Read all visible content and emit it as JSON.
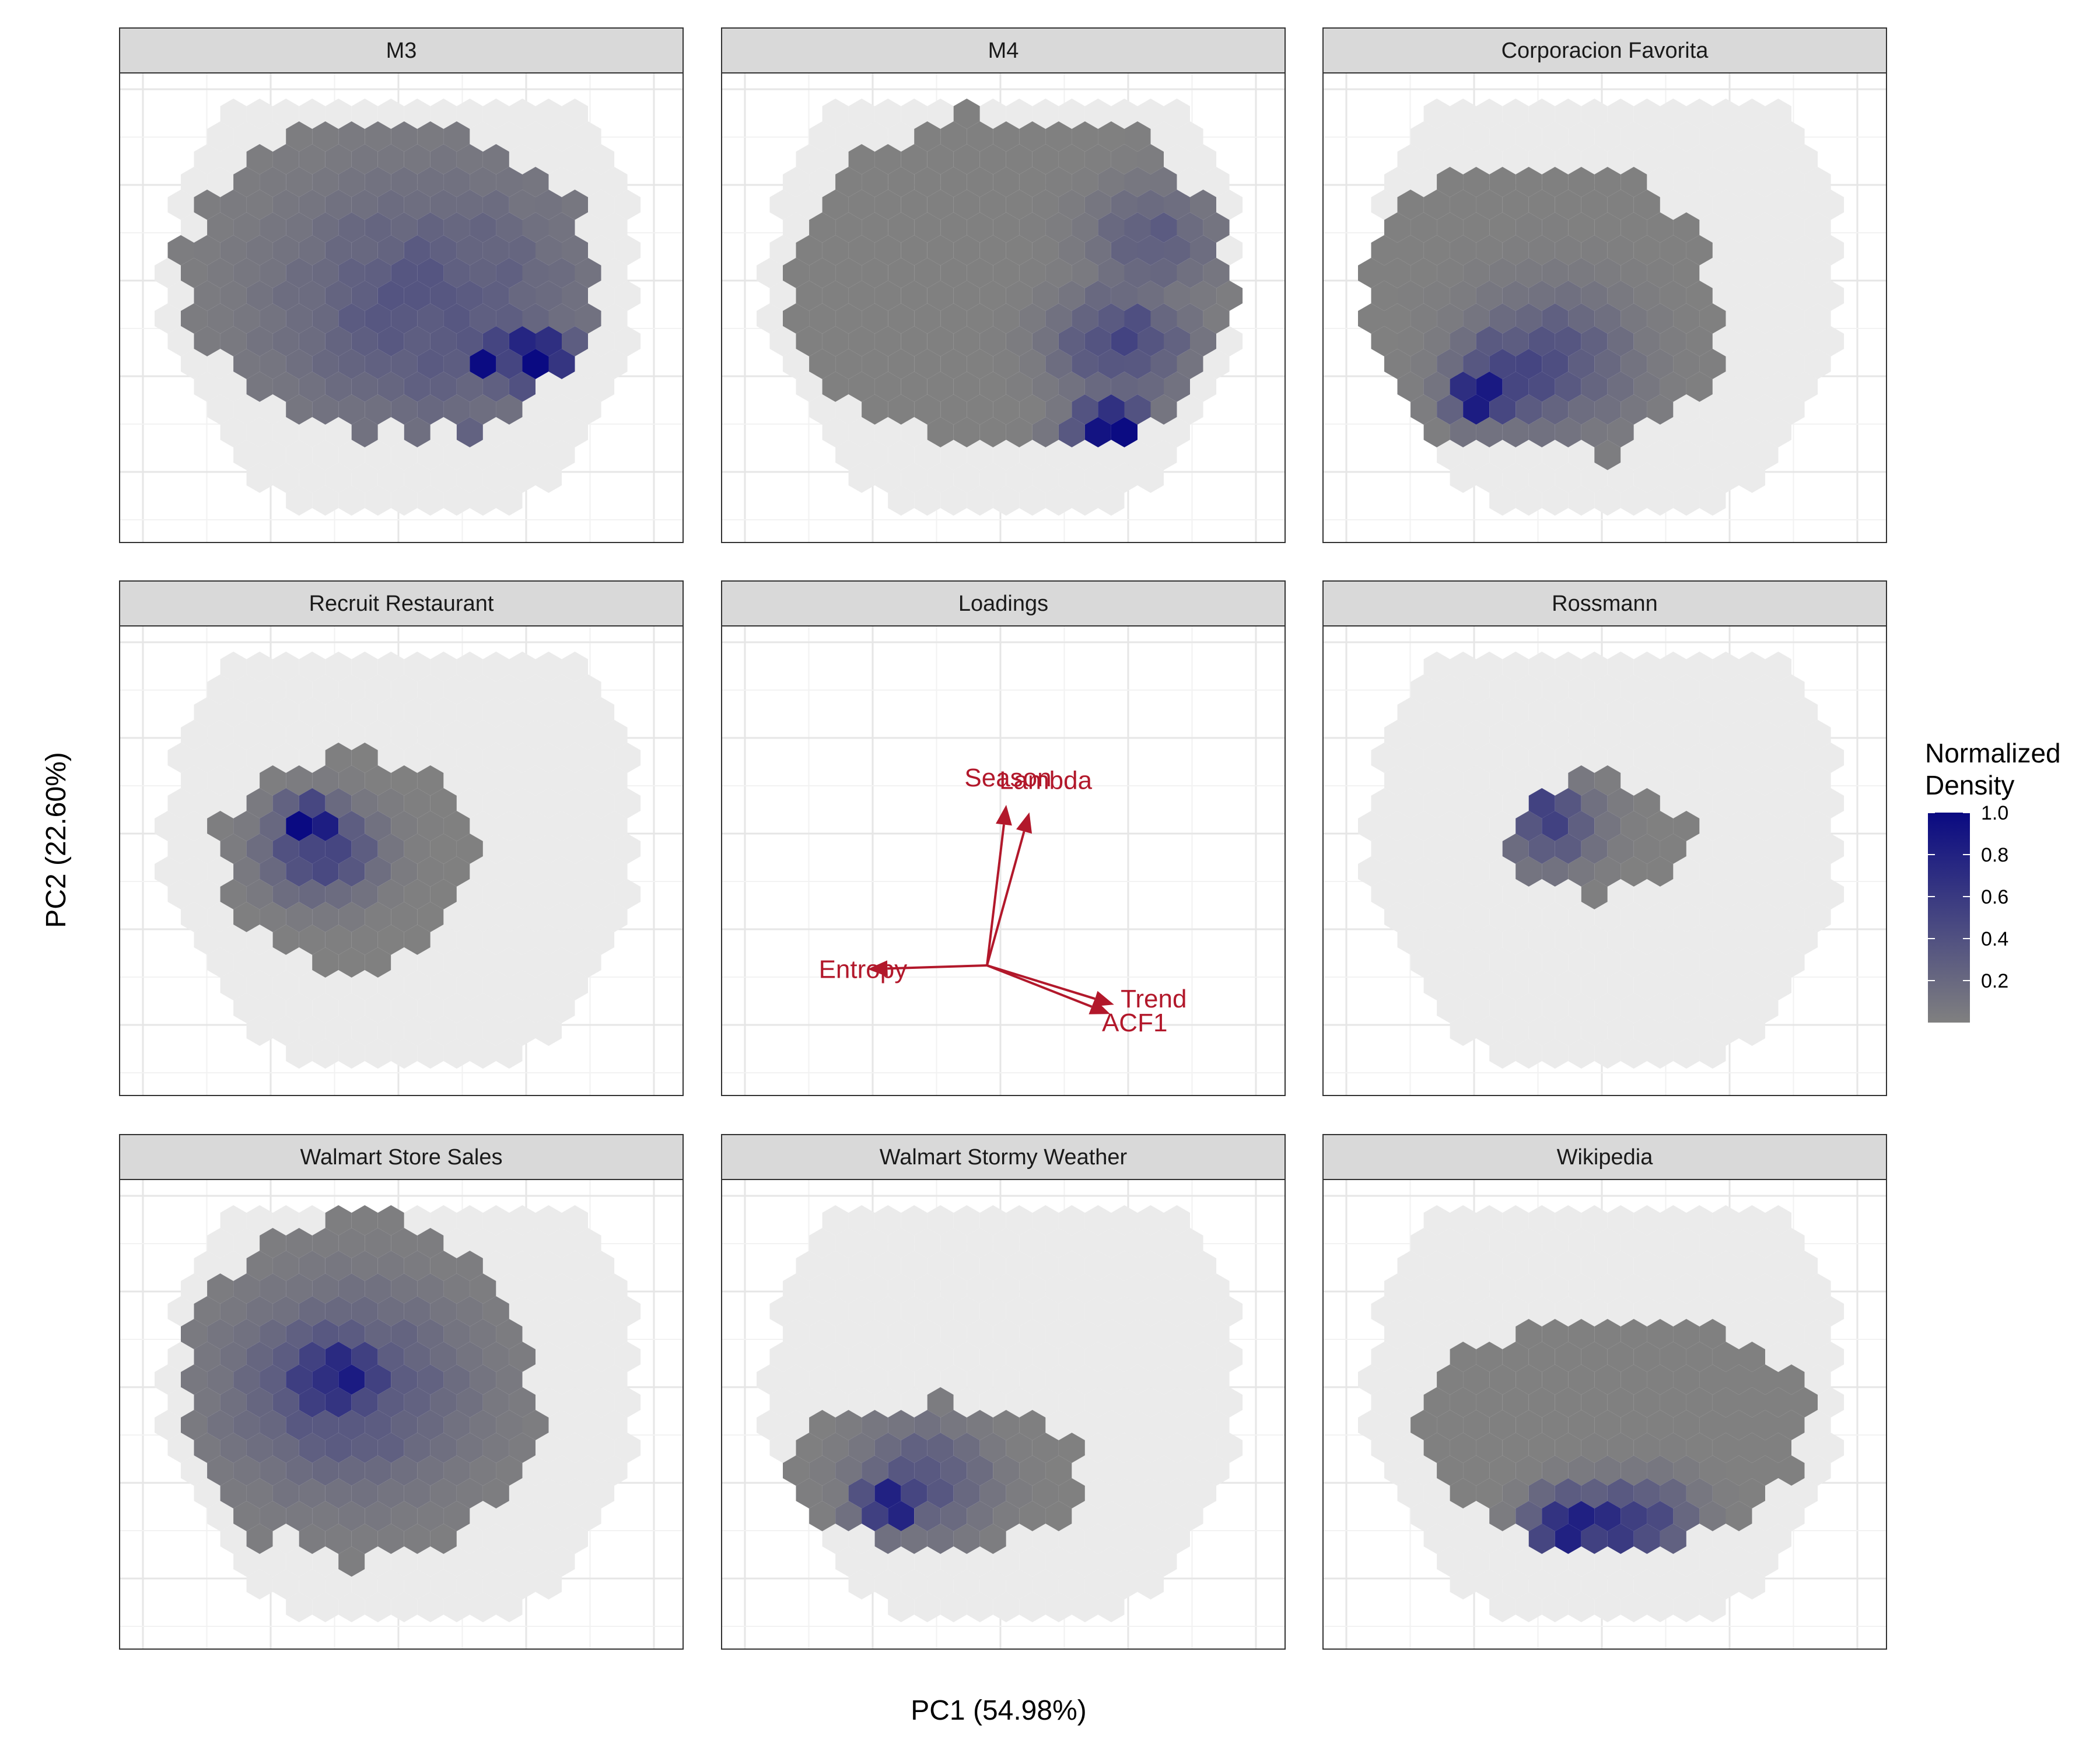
{
  "figure": {
    "xlabel": "PC1 (54.98%)",
    "ylabel": "PC2 (22.60%)",
    "legend": {
      "title_line1": "Normalized",
      "title_line2": "Density",
      "ticks": [
        "1.0",
        "0.8",
        "0.6",
        "0.4",
        "0.2"
      ],
      "tick_values": [
        1.0,
        0.8,
        0.6,
        0.4,
        0.2
      ],
      "color_low": "#808080",
      "color_high": "#0a0a82",
      "background_hex": "#ebebeb",
      "position": "right"
    },
    "panel_order": [
      "M3",
      "M4",
      "Corporacion Favorita",
      "Recruit Restaurant",
      "Loadings",
      "Rossmann",
      "Walmart Store Sales",
      "Walmart Stormy Weather",
      "Wikipedia"
    ]
  },
  "chart_data": [
    {
      "type": "heatmap",
      "panel": "M3",
      "grid": true,
      "xlim": [
        0,
        1
      ],
      "ylim": [
        0,
        1
      ],
      "background_extent": {
        "cx": 0.5,
        "cy": 0.56,
        "rx": 0.44,
        "ry": 0.38
      },
      "density_extent": {
        "cx": 0.48,
        "cy": 0.56,
        "rx": 0.38,
        "ry": 0.35
      },
      "peaks": [
        {
          "x": 0.75,
          "y": 0.39,
          "weight": 1.0,
          "spread": 0.05
        },
        {
          "x": 0.66,
          "y": 0.38,
          "weight": 0.9,
          "spread": 0.04
        },
        {
          "x": 0.7,
          "y": 0.15,
          "weight": 0.95,
          "spread": 0.06
        },
        {
          "x": 0.55,
          "y": 0.5,
          "weight": 0.35,
          "spread": 0.2
        }
      ]
    },
    {
      "type": "heatmap",
      "panel": "M4",
      "grid": true,
      "xlim": [
        0,
        1
      ],
      "ylim": [
        0,
        1
      ],
      "background_extent": {
        "cx": 0.5,
        "cy": 0.56,
        "rx": 0.44,
        "ry": 0.38
      },
      "density_extent": {
        "cx": 0.52,
        "cy": 0.56,
        "rx": 0.41,
        "ry": 0.37
      },
      "peaks": [
        {
          "x": 0.7,
          "y": 0.22,
          "weight": 1.0,
          "spread": 0.05
        },
        {
          "x": 0.66,
          "y": 0.15,
          "weight": 0.85,
          "spread": 0.05
        },
        {
          "x": 0.72,
          "y": 0.42,
          "weight": 0.5,
          "spread": 0.08
        },
        {
          "x": 0.78,
          "y": 0.65,
          "weight": 0.3,
          "spread": 0.08
        }
      ]
    },
    {
      "type": "heatmap",
      "panel": "Corporacion Favorita",
      "grid": true,
      "xlim": [
        0,
        1
      ],
      "ylim": [
        0,
        1
      ],
      "background_extent": {
        "cx": 0.5,
        "cy": 0.56,
        "rx": 0.44,
        "ry": 0.38
      },
      "density_extent": {
        "cx": 0.38,
        "cy": 0.5,
        "rx": 0.34,
        "ry": 0.33
      },
      "peaks": [
        {
          "x": 0.27,
          "y": 0.3,
          "weight": 1.0,
          "spread": 0.04
        },
        {
          "x": 0.33,
          "y": 0.35,
          "weight": 0.6,
          "spread": 0.07
        },
        {
          "x": 0.4,
          "y": 0.38,
          "weight": 0.4,
          "spread": 0.1
        }
      ]
    },
    {
      "type": "heatmap",
      "panel": "Recruit Restaurant",
      "grid": true,
      "xlim": [
        0,
        1
      ],
      "ylim": [
        0,
        1
      ],
      "background_extent": {
        "cx": 0.5,
        "cy": 0.56,
        "rx": 0.44,
        "ry": 0.38
      },
      "density_extent": {
        "cx": 0.4,
        "cy": 0.5,
        "rx": 0.24,
        "ry": 0.23
      },
      "peaks": [
        {
          "x": 0.33,
          "y": 0.58,
          "weight": 1.0,
          "spread": 0.04
        },
        {
          "x": 0.35,
          "y": 0.52,
          "weight": 0.55,
          "spread": 0.07
        }
      ]
    },
    {
      "type": "heatmap",
      "panel": "Rossmann",
      "grid": true,
      "xlim": [
        0,
        1
      ],
      "ylim": [
        0,
        1
      ],
      "background_extent": {
        "cx": 0.5,
        "cy": 0.56,
        "rx": 0.44,
        "ry": 0.38
      },
      "density_extent": {
        "cx": 0.48,
        "cy": 0.56,
        "rx": 0.17,
        "ry": 0.13
      },
      "peaks": [
        {
          "x": 0.35,
          "y": 0.62,
          "weight": 1.0,
          "spread": 0.03
        },
        {
          "x": 0.4,
          "y": 0.58,
          "weight": 0.5,
          "spread": 0.06
        }
      ]
    },
    {
      "type": "heatmap",
      "panel": "Walmart Store Sales",
      "grid": true,
      "xlim": [
        0,
        1
      ],
      "ylim": [
        0,
        1
      ],
      "background_extent": {
        "cx": 0.5,
        "cy": 0.56,
        "rx": 0.44,
        "ry": 0.38
      },
      "density_extent": {
        "cx": 0.42,
        "cy": 0.56,
        "rx": 0.33,
        "ry": 0.38
      },
      "peaks": [
        {
          "x": 0.4,
          "y": 0.6,
          "weight": 1.0,
          "spread": 0.04
        },
        {
          "x": 0.38,
          "y": 0.58,
          "weight": 0.75,
          "spread": 0.08
        },
        {
          "x": 0.4,
          "y": 0.55,
          "weight": 0.4,
          "spread": 0.15
        }
      ]
    },
    {
      "type": "heatmap",
      "panel": "Walmart Stormy Weather",
      "grid": true,
      "xlim": [
        0,
        1
      ],
      "ylim": [
        0,
        1
      ],
      "background_extent": {
        "cx": 0.5,
        "cy": 0.56,
        "rx": 0.44,
        "ry": 0.38
      },
      "density_extent": {
        "cx": 0.38,
        "cy": 0.36,
        "rx": 0.27,
        "ry": 0.17
      },
      "peaks": [
        {
          "x": 0.29,
          "y": 0.3,
          "weight": 1.0,
          "spread": 0.04
        },
        {
          "x": 0.35,
          "y": 0.35,
          "weight": 0.4,
          "spread": 0.08
        }
      ]
    },
    {
      "type": "heatmap",
      "panel": "Wikipedia",
      "grid": true,
      "xlim": [
        0,
        1
      ],
      "ylim": [
        0,
        1
      ],
      "background_extent": {
        "cx": 0.5,
        "cy": 0.56,
        "rx": 0.44,
        "ry": 0.38
      },
      "density_extent": {
        "cx": 0.52,
        "cy": 0.46,
        "rx": 0.36,
        "ry": 0.26
      },
      "peaks": [
        {
          "x": 0.44,
          "y": 0.25,
          "weight": 1.0,
          "spread": 0.05
        },
        {
          "x": 0.52,
          "y": 0.25,
          "weight": 0.7,
          "spread": 0.06
        },
        {
          "x": 0.58,
          "y": 0.26,
          "weight": 0.45,
          "spread": 0.06
        }
      ]
    },
    {
      "type": "scatter",
      "panel": "Loadings",
      "grid": true,
      "xlim": [
        -1,
        1
      ],
      "ylim": [
        -1,
        1
      ],
      "arrow_color": "#b2182b",
      "arrows": [
        {
          "label": "Season",
          "x": 0.1,
          "y": 0.86
        },
        {
          "label": "Lambda",
          "x": 0.22,
          "y": 0.82
        },
        {
          "label": "Entropy",
          "x": -0.62,
          "y": -0.02
        },
        {
          "label": "Trend",
          "x": 0.66,
          "y": -0.21
        },
        {
          "label": "ACF1",
          "x": 0.64,
          "y": -0.26
        }
      ]
    }
  ]
}
